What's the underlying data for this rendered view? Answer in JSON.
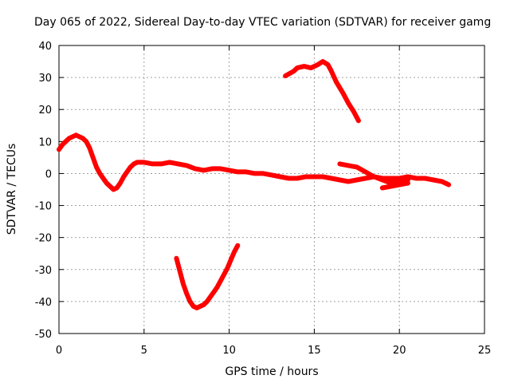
{
  "chart_data": {
    "type": "line",
    "title": "Day 065 of 2022, Sidereal Day-to-day VTEC variation (SDTVAR) for receiver gamg",
    "xlabel": "GPS time / hours",
    "ylabel": "SDTVAR / TECUs",
    "xlim": [
      0,
      25
    ],
    "ylim": [
      -50,
      40
    ],
    "x_ticks": [
      0,
      5,
      10,
      15,
      20,
      25
    ],
    "y_ticks": [
      -50,
      -40,
      -30,
      -20,
      -10,
      0,
      10,
      20,
      30,
      40
    ],
    "x_tick_labels": [
      "0",
      "5",
      "10",
      "15",
      "20",
      "25"
    ],
    "y_tick_labels": [
      "-50",
      "-40",
      "-30",
      "-20",
      "-10",
      "0",
      "10",
      "20",
      "30",
      "40"
    ],
    "grid": true,
    "color": "#ff0000",
    "series": [
      {
        "name": "trace-1",
        "x": [
          0.0,
          0.2,
          0.4,
          0.6,
          0.8,
          1.0,
          1.2,
          1.4,
          1.6,
          1.8,
          2.0,
          2.2,
          2.4,
          2.6,
          2.8,
          3.0,
          3.2,
          3.4,
          3.6,
          3.8,
          4.0,
          4.2,
          4.4,
          4.6,
          4.8,
          5.0,
          5.5,
          6.0,
          6.5,
          7.0,
          7.5,
          8.0,
          8.5,
          9.0,
          9.5,
          10.0,
          10.5,
          11.0,
          11.5,
          12.0,
          12.5,
          13.0,
          13.5,
          14.0,
          14.5,
          15.0,
          15.5,
          16.0,
          16.5,
          17.0,
          17.5,
          18.0,
          18.5,
          19.0,
          19.5,
          20.0,
          20.5,
          21.0,
          21.5,
          22.0,
          22.5,
          22.9
        ],
        "y": [
          7.5,
          9.0,
          10.0,
          11.0,
          11.5,
          12.0,
          11.5,
          11.0,
          10.0,
          8.0,
          5.0,
          2.0,
          0.0,
          -1.5,
          -3.0,
          -4.0,
          -5.0,
          -4.5,
          -3.0,
          -1.0,
          0.5,
          2.0,
          3.0,
          3.5,
          3.5,
          3.5,
          3.0,
          3.0,
          3.5,
          3.0,
          2.5,
          1.5,
          1.0,
          1.5,
          1.5,
          1.0,
          0.5,
          0.5,
          0.0,
          0.0,
          -0.5,
          -1.0,
          -1.5,
          -1.5,
          -1.0,
          -1.0,
          -1.0,
          -1.5,
          -2.0,
          -2.5,
          -2.0,
          -1.5,
          -1.0,
          -1.5,
          -1.5,
          -1.5,
          -1.0,
          -1.5,
          -1.5,
          -2.0,
          -2.5,
          -3.5
        ]
      },
      {
        "name": "trace-2",
        "x": [
          16.5,
          17.0,
          17.5,
          18.0,
          18.5,
          19.0,
          19.5,
          20.0,
          20.5
        ],
        "y": [
          3.0,
          2.5,
          2.0,
          0.5,
          -1.0,
          -2.0,
          -3.0,
          -2.5,
          -2.0
        ]
      },
      {
        "name": "trace-3",
        "x": [
          19.0,
          19.5,
          20.0,
          20.5
        ],
        "y": [
          -4.5,
          -4.0,
          -3.5,
          -3.0
        ]
      },
      {
        "name": "trace-4",
        "x": [
          13.3,
          13.8,
          14.0,
          14.4,
          14.8,
          15.2,
          15.5,
          15.8,
          16.0,
          16.3,
          16.7,
          17.0,
          17.3,
          17.6
        ],
        "y": [
          30.5,
          32.0,
          33.0,
          33.5,
          33.0,
          34.0,
          35.0,
          34.0,
          32.0,
          28.5,
          25.0,
          22.0,
          19.5,
          16.5
        ]
      },
      {
        "name": "trace-5",
        "x": [
          6.9,
          7.1,
          7.3,
          7.5,
          7.7,
          7.9,
          8.1,
          8.3,
          8.5,
          8.7,
          8.9,
          9.1,
          9.3,
          9.5,
          9.7,
          9.9,
          10.1,
          10.3,
          10.5
        ],
        "y": [
          -26.5,
          -30.5,
          -34.5,
          -37.5,
          -40.0,
          -41.5,
          -42.0,
          -41.5,
          -41.0,
          -40.0,
          -38.5,
          -37.0,
          -35.5,
          -33.5,
          -31.5,
          -29.5,
          -27.0,
          -24.5,
          -22.5
        ]
      }
    ]
  }
}
